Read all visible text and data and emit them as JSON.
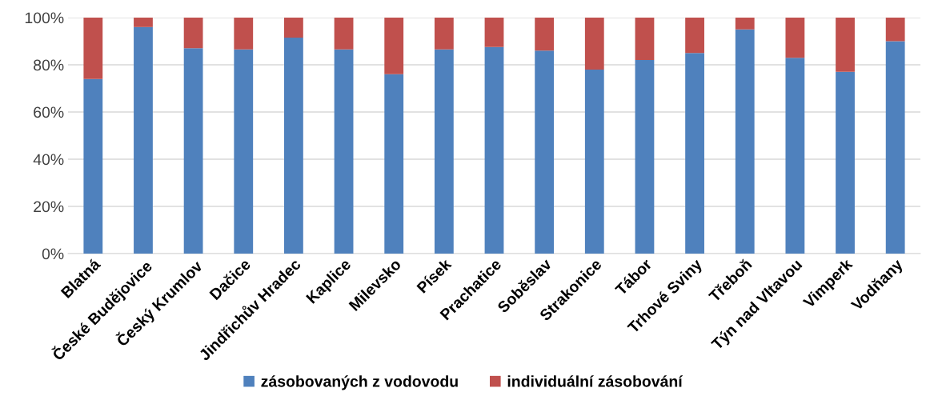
{
  "chart_data": {
    "type": "bar",
    "stacked": true,
    "categories": [
      "Blatná",
      "České Budějovice",
      "Český Krumlov",
      "Dačice",
      "Jindřichův Hradec",
      "Kaplice",
      "Milevsko",
      "Písek",
      "Prachatice",
      "Soběslav",
      "Strakonice",
      "Tábor",
      "Trhové Sviny",
      "Třeboň",
      "Týn nad Vltavou",
      "Vimperk",
      "Vodňany"
    ],
    "series": [
      {
        "name": "zásobovaných z vodovodu",
        "color": "#4f81bd",
        "values": [
          74,
          96,
          87,
          86.5,
          91.5,
          86.5,
          76,
          86.5,
          87.5,
          86,
          78,
          82,
          85,
          95,
          83,
          77,
          90
        ]
      },
      {
        "name": "individuální zásobování",
        "color": "#c0504d",
        "values": [
          26,
          4,
          13,
          13.5,
          8.5,
          13.5,
          24,
          13.5,
          12.5,
          14,
          22,
          18,
          15,
          5,
          17,
          23,
          10
        ]
      }
    ],
    "ylim": [
      0,
      100
    ],
    "yticks": [
      {
        "value": 0,
        "label": "0%"
      },
      {
        "value": 20,
        "label": "20%"
      },
      {
        "value": 40,
        "label": "40%"
      },
      {
        "value": 60,
        "label": "60%"
      },
      {
        "value": 80,
        "label": "80%"
      },
      {
        "value": 100,
        "label": "100%"
      }
    ],
    "grid": "y",
    "legend": "bottom"
  }
}
